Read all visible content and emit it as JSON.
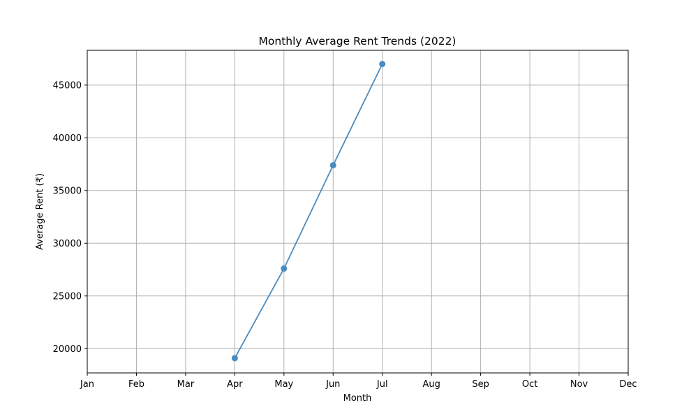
{
  "chart_data": {
    "type": "line",
    "title": "Monthly Average Rent Trends (2022)",
    "xlabel": "Month",
    "ylabel": "Average Rent (₹)",
    "categories": [
      "Jan",
      "Feb",
      "Mar",
      "Apr",
      "May",
      "Jun",
      "Jul",
      "Aug",
      "Sep",
      "Oct",
      "Nov",
      "Dec"
    ],
    "yticks": [
      20000,
      25000,
      30000,
      35000,
      40000,
      45000
    ],
    "ylim": [
      17700,
      48300
    ],
    "grid": true,
    "series": [
      {
        "color": "#4a8bbf",
        "points": [
          {
            "x": "Apr",
            "y": 19100
          },
          {
            "x": "May",
            "y": 27600
          },
          {
            "x": "Jun",
            "y": 37400
          },
          {
            "x": "Jul",
            "y": 47000
          }
        ]
      }
    ]
  }
}
